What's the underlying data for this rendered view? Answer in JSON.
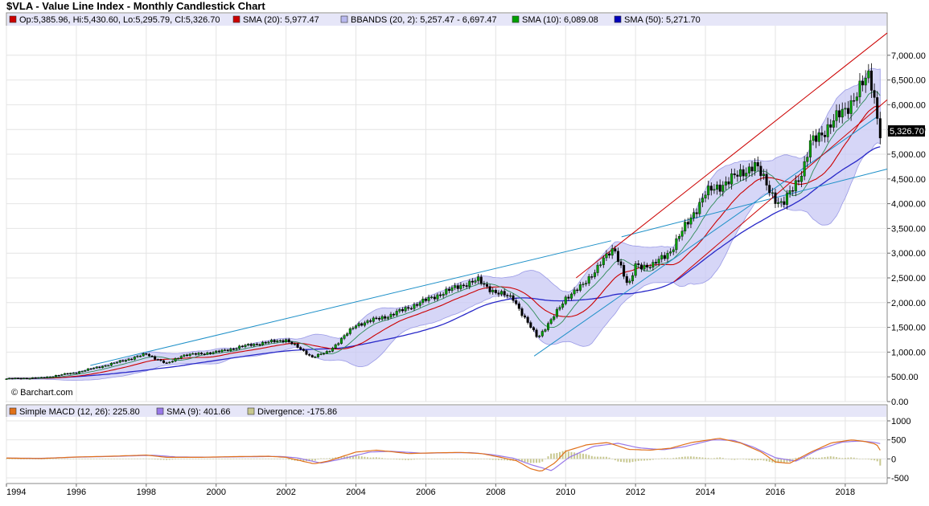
{
  "page": {
    "title": "$VLA - Value Line Index - Monthly Candlestick Chart"
  },
  "chart_data": [
    {
      "type": "candlestick",
      "title": "$VLA - Value Line Index - Monthly Candlestick Chart",
      "source": "© Barchart.com",
      "x_range": [
        1994.0,
        2019.2
      ],
      "x_ticks": [
        "1994",
        "1996",
        "1998",
        "2000",
        "2002",
        "2004",
        "2006",
        "2008",
        "2010",
        "2012",
        "2014",
        "2016",
        "2018"
      ],
      "y_range": [
        0,
        7500
      ],
      "y_ticks": [
        "0.00",
        "500.00",
        "1,000.00",
        "1,500.00",
        "2,000.00",
        "2,500.00",
        "3,000.00",
        "3,500.00",
        "4,000.00",
        "4,500.00",
        "5,000.00",
        "5,500.00",
        "6,000.00",
        "6,500.00",
        "7,000.00"
      ],
      "last_value": "5,326.70",
      "legend": [
        {
          "key": "ohlc",
          "color": "#cc0000",
          "text": "Op:5,385.96, Hi:5,430.60, Lo:5,295.79, Cl:5,326.70"
        },
        {
          "key": "sma20",
          "color": "#cc0000",
          "text": "SMA (20): 5,977.47"
        },
        {
          "key": "bbands",
          "color": "#b8b8ee",
          "text": "BBANDS (20, 2): 5,257.47 - 6,697.47"
        },
        {
          "key": "sma10",
          "color": "#00a000",
          "text": "SMA (10): 6,089.08"
        },
        {
          "key": "sma50",
          "color": "#0000bb",
          "text": "SMA (50): 5,271.70"
        }
      ],
      "colors": {
        "up": "#00a000",
        "down": "#000000",
        "sma20": "#cc0000",
        "sma10": "#2e8b57",
        "sma50": "#2828c8",
        "band_fill": "#c8c8f4",
        "band_line": "#9a9ae6",
        "trend_blue": "#1e90c8",
        "trend_red": "#cc0000"
      },
      "price_anchors": [
        [
          1994.0,
          460
        ],
        [
          1995.0,
          480
        ],
        [
          1996.0,
          590
        ],
        [
          1997.0,
          760
        ],
        [
          1998.0,
          960
        ],
        [
          1998.6,
          760
        ],
        [
          1999.0,
          930
        ],
        [
          2000.0,
          1000
        ],
        [
          2001.0,
          1150
        ],
        [
          2002.0,
          1250
        ],
        [
          2002.75,
          900
        ],
        [
          2003.2,
          1000
        ],
        [
          2004.0,
          1550
        ],
        [
          2005.0,
          1750
        ],
        [
          2006.0,
          2050
        ],
        [
          2007.0,
          2350
        ],
        [
          2007.5,
          2450
        ],
        [
          2008.0,
          2200
        ],
        [
          2008.5,
          2100
        ],
        [
          2008.8,
          1700
        ],
        [
          2009.2,
          1300
        ],
        [
          2009.6,
          1650
        ],
        [
          2010.0,
          2100
        ],
        [
          2010.5,
          2350
        ],
        [
          2011.0,
          2800
        ],
        [
          2011.4,
          3100
        ],
        [
          2011.8,
          2300
        ],
        [
          2012.0,
          2750
        ],
        [
          2012.5,
          2750
        ],
        [
          2013.0,
          3050
        ],
        [
          2014.0,
          4200
        ],
        [
          2015.0,
          4600
        ],
        [
          2015.4,
          4800
        ],
        [
          2016.0,
          4100
        ],
        [
          2016.2,
          3950
        ],
        [
          2016.8,
          4700
        ],
        [
          2017.0,
          5200
        ],
        [
          2018.0,
          5900
        ],
        [
          2018.7,
          6600
        ],
        [
          2018.85,
          6100
        ],
        [
          2019.0,
          5330
        ]
      ],
      "trendlines": [
        {
          "color": "trend_blue",
          "points": [
            [
              1996.4,
              730
            ],
            [
              2011.3,
              3250
            ]
          ]
        },
        {
          "color": "trend_blue",
          "points": [
            [
              2011.6,
              3330
            ],
            [
              2019.2,
              4700
            ]
          ]
        },
        {
          "color": "trend_blue",
          "points": [
            [
              2009.1,
              920
            ],
            [
              2018.9,
              5750
            ]
          ]
        },
        {
          "color": "trend_red",
          "points": [
            [
              2010.3,
              2500
            ],
            [
              2019.2,
              7450
            ]
          ]
        },
        {
          "color": "trend_red",
          "points": [
            [
              2013.1,
              2420
            ],
            [
              2019.2,
              6100
            ]
          ]
        }
      ]
    },
    {
      "type": "macd",
      "x_range": [
        1994.0,
        2019.2
      ],
      "y_range": [
        -500,
        1000
      ],
      "y_ticks": [
        "-500",
        "0",
        "500",
        "1000"
      ],
      "legend": [
        {
          "key": "macd",
          "color": "#e0701a",
          "text": "Simple MACD (12, 26): 225.80"
        },
        {
          "key": "signal",
          "color": "#9878e8",
          "text": "SMA (9): 401.66"
        },
        {
          "key": "divergence",
          "color": "#c8c890",
          "text": "Divergence: -175.86"
        }
      ],
      "colors": {
        "macd": "#e0701a",
        "signal": "#9878e8",
        "divergence": "#c8c890"
      },
      "macd_anchors": [
        [
          1994.0,
          20
        ],
        [
          1995.0,
          10
        ],
        [
          1996.0,
          50
        ],
        [
          1997.0,
          70
        ],
        [
          1998.0,
          100
        ],
        [
          1998.6,
          40
        ],
        [
          1999.5,
          40
        ],
        [
          2000.5,
          60
        ],
        [
          2001.5,
          70
        ],
        [
          2002.0,
          40
        ],
        [
          2002.8,
          -130
        ],
        [
          2003.2,
          -60
        ],
        [
          2004.0,
          180
        ],
        [
          2004.6,
          230
        ],
        [
          2005.5,
          140
        ],
        [
          2006.3,
          160
        ],
        [
          2007.0,
          170
        ],
        [
          2007.6,
          140
        ],
        [
          2008.2,
          30
        ],
        [
          2008.6,
          -50
        ],
        [
          2009.0,
          -260
        ],
        [
          2009.3,
          -330
        ],
        [
          2009.7,
          -100
        ],
        [
          2010.0,
          200
        ],
        [
          2010.6,
          370
        ],
        [
          2011.2,
          430
        ],
        [
          2011.8,
          250
        ],
        [
          2012.4,
          230
        ],
        [
          2013.0,
          280
        ],
        [
          2013.6,
          430
        ],
        [
          2014.4,
          540
        ],
        [
          2015.0,
          420
        ],
        [
          2015.6,
          180
        ],
        [
          2016.0,
          -80
        ],
        [
          2016.4,
          -120
        ],
        [
          2017.0,
          170
        ],
        [
          2017.6,
          420
        ],
        [
          2018.2,
          500
        ],
        [
          2018.6,
          450
        ],
        [
          2018.9,
          380
        ],
        [
          2019.0,
          226
        ]
      ],
      "signal_anchors": [
        [
          1994.0,
          20
        ],
        [
          1995.0,
          15
        ],
        [
          1996.0,
          45
        ],
        [
          1997.0,
          65
        ],
        [
          1998.2,
          95
        ],
        [
          1998.9,
          50
        ],
        [
          1999.8,
          45
        ],
        [
          2000.8,
          55
        ],
        [
          2001.8,
          65
        ],
        [
          2002.3,
          30
        ],
        [
          2003.0,
          -110
        ],
        [
          2003.5,
          -20
        ],
        [
          2004.4,
          180
        ],
        [
          2005.0,
          200
        ],
        [
          2005.9,
          150
        ],
        [
          2006.6,
          160
        ],
        [
          2007.3,
          165
        ],
        [
          2007.9,
          110
        ],
        [
          2008.5,
          20
        ],
        [
          2009.0,
          -150
        ],
        [
          2009.6,
          -310
        ],
        [
          2010.1,
          40
        ],
        [
          2010.8,
          330
        ],
        [
          2011.5,
          410
        ],
        [
          2012.1,
          290
        ],
        [
          2012.8,
          240
        ],
        [
          2013.4,
          320
        ],
        [
          2014.2,
          500
        ],
        [
          2014.8,
          490
        ],
        [
          2015.4,
          300
        ],
        [
          2016.0,
          30
        ],
        [
          2016.6,
          -60
        ],
        [
          2017.2,
          230
        ],
        [
          2017.9,
          440
        ],
        [
          2018.4,
          470
        ],
        [
          2018.8,
          440
        ],
        [
          2019.0,
          402
        ]
      ]
    }
  ]
}
